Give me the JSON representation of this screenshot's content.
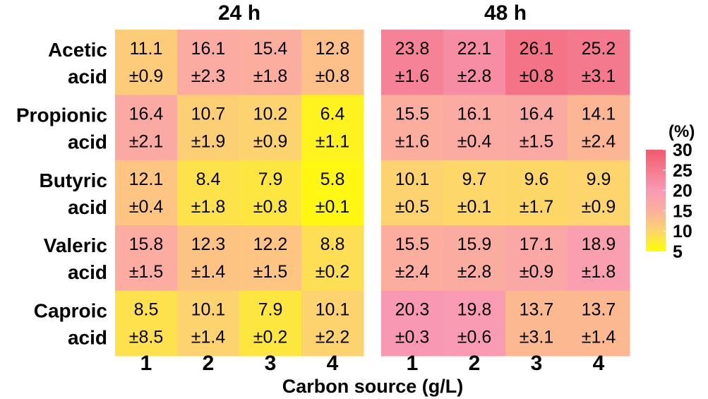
{
  "chart_data": {
    "type": "heatmap",
    "xlabel": "Carbon source (g/L)",
    "categories": [
      "1",
      "2",
      "3",
      "4"
    ],
    "rows": [
      {
        "line1": "Acetic",
        "line2": "acid"
      },
      {
        "line1": "Propionic",
        "line2": "acid"
      },
      {
        "line1": "Butyric",
        "line2": "acid"
      },
      {
        "line1": "Valeric",
        "line2": "acid"
      },
      {
        "line1": "Caproic",
        "line2": "acid"
      }
    ],
    "panels": [
      {
        "title": "24 h",
        "values": [
          [
            11.1,
            16.1,
            15.4,
            12.8
          ],
          [
            16.4,
            10.7,
            10.2,
            6.4
          ],
          [
            12.1,
            8.4,
            7.9,
            5.8
          ],
          [
            15.8,
            12.3,
            12.2,
            8.8
          ],
          [
            8.5,
            10.1,
            7.9,
            10.1
          ]
        ],
        "values_label": [
          [
            "11.1",
            "16.1",
            "15.4",
            "12.8"
          ],
          [
            "16.4",
            "10.7",
            "10.2",
            "6.4"
          ],
          [
            "12.1",
            "8.4",
            "7.9",
            "5.8"
          ],
          [
            "15.8",
            "12.3",
            "12.2",
            "8.8"
          ],
          [
            "8.5",
            "10.1",
            "7.9",
            "10.1"
          ]
        ],
        "errors_label": [
          [
            "±0.9",
            "±2.3",
            "±1.8",
            "±0.8"
          ],
          [
            "±2.1",
            "±1.9",
            "±0.9",
            "±1.1"
          ],
          [
            "±0.4",
            "±1.8",
            "±0.8",
            "±0.1"
          ],
          [
            "±1.5",
            "±1.4",
            "±1.5",
            "±0.2"
          ],
          [
            "±8.5",
            "±1.4",
            "±0.2",
            "±2.2"
          ]
        ]
      },
      {
        "title": "48 h",
        "values": [
          [
            23.8,
            22.1,
            26.1,
            25.2
          ],
          [
            15.5,
            16.1,
            16.4,
            14.1
          ],
          [
            10.1,
            9.7,
            9.6,
            9.9
          ],
          [
            15.5,
            15.9,
            17.1,
            18.9
          ],
          [
            20.3,
            19.8,
            13.7,
            13.7
          ]
        ],
        "values_label": [
          [
            "23.8",
            "22.1",
            "26.1",
            "25.2"
          ],
          [
            "15.5",
            "16.1",
            "16.4",
            "14.1"
          ],
          [
            "10.1",
            "9.7",
            "9.6",
            "9.9"
          ],
          [
            "15.5",
            "15.9",
            "17.1",
            "18.9"
          ],
          [
            "20.3",
            "19.8",
            "13.7",
            "13.7"
          ]
        ],
        "errors_label": [
          [
            "±1.6",
            "±2.8",
            "±0.8",
            "±3.1"
          ],
          [
            "±1.6",
            "±0.4",
            "±1.5",
            "±2.4"
          ],
          [
            "±0.5",
            "±0.1",
            "±1.7",
            "±0.9"
          ],
          [
            "±2.4",
            "±2.8",
            "±0.9",
            "±1.8"
          ],
          [
            "±0.3",
            "±0.6",
            "±3.1",
            "±1.4"
          ]
        ]
      }
    ],
    "legend": {
      "title": "(%)",
      "ticks": [
        "30",
        "25",
        "20",
        "15",
        "10",
        "5"
      ],
      "range": [
        5,
        30
      ],
      "placement": "right"
    },
    "color_scale": {
      "stops": [
        {
          "value": 5,
          "color": "#ffff00"
        },
        {
          "value": 10,
          "color": "#fdd46e"
        },
        {
          "value": 15,
          "color": "#fcb09c"
        },
        {
          "value": 20,
          "color": "#f99ab4"
        },
        {
          "value": 25,
          "color": "#f57a8e"
        },
        {
          "value": 30,
          "color": "#f25a6c"
        }
      ]
    },
    "grid": false
  }
}
